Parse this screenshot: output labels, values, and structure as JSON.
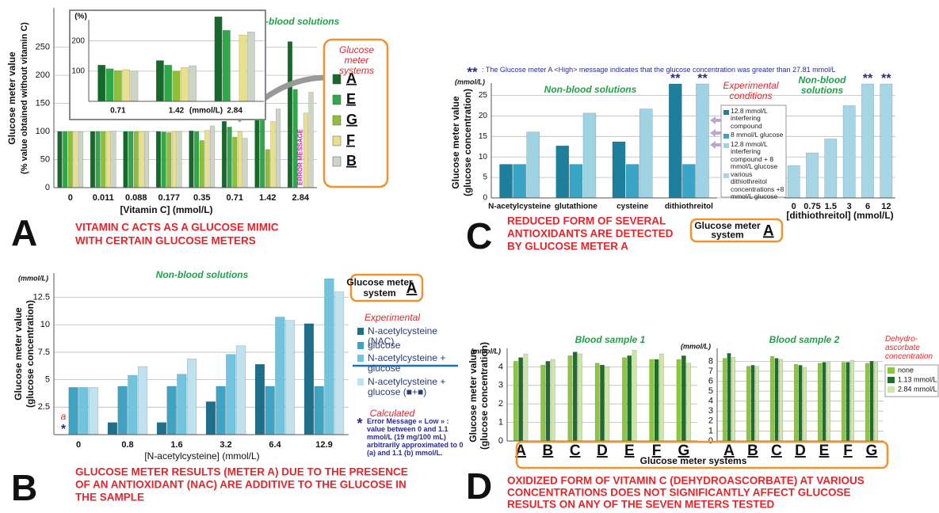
{
  "chart_data": [
    {
      "type": "bar",
      "panel": "A",
      "caption": [
        "VITAMIN C ACTS AS A GLUCOSE MIMIC",
        "WITH CERTAIN GLUCOSE METERS"
      ],
      "ylabel": [
        "Glucose meter value",
        "(% value obtained without vitamin C)"
      ],
      "xlabel": "[Vitamin C] (mmol/L)",
      "annotation": "Non-blood solutions",
      "legend_title": "Glucose meter systems",
      "categories": [
        "0",
        "0.011",
        "0.088",
        "0.177",
        "0.35",
        "0.71",
        "1.42",
        "2.84"
      ],
      "series": [
        {
          "name": "A",
          "color": "#17692b",
          "values": [
            100,
            100,
            100,
            100,
            101,
            118,
            170,
            260
          ]
        },
        {
          "name": "E",
          "color": "#2fa84a",
          "values": [
            100,
            100,
            100,
            99,
            100,
            108,
            130,
            175
          ]
        },
        {
          "name": "G",
          "color": "#8fbf3a",
          "values": [
            100,
            100,
            100,
            98,
            84,
            90,
            68,
            null
          ],
          "markers": [
            null,
            null,
            null,
            null,
            null,
            null,
            null,
            "ERROR MESSAGE"
          ]
        },
        {
          "name": "F",
          "color": "#e8e08c",
          "values": [
            100,
            100,
            100,
            100,
            102,
            100,
            118,
            133
          ]
        },
        {
          "name": "B",
          "color": "#cdd5c6",
          "values": [
            99,
            101,
            100,
            100,
            110,
            88,
            140,
            170
          ]
        }
      ],
      "ylim": [
        0,
        320
      ],
      "yticks": [
        0,
        50,
        100,
        150,
        200,
        250
      ],
      "grid": true
    },
    {
      "type": "bar",
      "ylabel": "(%)",
      "xlabel": "(mmol/L)",
      "categories": [
        "0.71",
        "1.42",
        "2.84"
      ],
      "series": [
        {
          "color": "#17692b",
          "values": [
            120,
            135,
            280
          ]
        },
        {
          "color": "#2fa84a",
          "values": [
            108,
            120,
            235
          ]
        },
        {
          "color": "#8fbf3a",
          "values": [
            102,
            100,
            null
          ]
        },
        {
          "color": "#e8e08c",
          "values": [
            105,
            112,
            220
          ]
        },
        {
          "color": "#cdd5c6",
          "values": [
            100,
            118,
            230
          ]
        }
      ],
      "ylim": [
        0,
        270
      ],
      "yticks": [
        100,
        200
      ],
      "grid": true
    },
    {
      "type": "bar",
      "panel": "B",
      "caption": [
        "GLUCOSE METER RESULTS (METER A) DUE TO THE PRESENCE",
        "OF AN ANTIOXIDANT (NAC) ARE ADDITIVE TO THE GLUCOSE IN",
        "THE SAMPLE"
      ],
      "ylabel": [
        "Glucose meter value",
        "(glucose concentration)"
      ],
      "yunit": "(mmol/L)",
      "xlabel": "[N-acetylcysteine] (mmol/L)",
      "annotation": "Non-blood solutions",
      "system_box": [
        "Glucose meter",
        "system",
        "A"
      ],
      "legend_groups": [
        "Experimental",
        "Calculated"
      ],
      "note_marker": "*",
      "note": "Error Message « Low » : value between 0 and 1.1 mmol/L (19 mg/100 mL) arbitrarily approximated to 0 (a) and 1.1 (b) mmol/L.",
      "categories": [
        "0",
        "0.8",
        "1.6",
        "3.2",
        "6.4",
        "12.9"
      ],
      "series": [
        {
          "name": "N-acetylcysteine (NAC)",
          "color": "#1d6f8a",
          "values": [
            null,
            1.1,
            1.1,
            3.0,
            6.4,
            10.1
          ],
          "markers": [
            "*",
            null,
            null,
            null,
            null,
            null
          ],
          "marker_notes": [
            "a",
            null,
            null,
            null,
            null,
            null
          ]
        },
        {
          "name": "glucose",
          "color": "#3fa4c4",
          "values": [
            4.3,
            4.4,
            4.4,
            4.4,
            4.4,
            4.4
          ]
        },
        {
          "name": "N-acetylcysteine + glucose",
          "color": "#72c4dc",
          "values": [
            4.3,
            5.4,
            5.5,
            7.3,
            10.7,
            14.2
          ]
        },
        {
          "name": "N-acetylcysteine + glucose (■+■)",
          "color": "#bfe2ee",
          "values": [
            4.3,
            6.2,
            6.9,
            8.1,
            10.4,
            13.0
          ]
        }
      ],
      "ylim": [
        0,
        14.7
      ],
      "yticks": [
        2.5,
        5,
        7.5,
        10,
        12.5
      ],
      "grid": true
    },
    {
      "type": "bar",
      "panel": "C",
      "caption": [
        "REDUCED FORM OF SEVERAL",
        "ANTIOXIDANTS ARE DETECTED",
        "BY GLUCOSE METER A"
      ],
      "note_marker": "**",
      "note": ": The Glucose meter A <High> message indicates that the glucose concentration was greater than 27.81 mmol/L",
      "ylabel": [
        "Glucose meter value",
        "(glucose concentration)"
      ],
      "yunit": "(mmol/L)",
      "annotation": "Non-blood solutions",
      "legend_title": "Experimental conditions",
      "system_box": [
        "Glucose meter",
        "system",
        "A"
      ],
      "categories": [
        "N-acetylcysteine",
        "glutathione",
        "cysteine",
        "dithiothreitol"
      ],
      "series": [
        {
          "name": "12.8 mmol/L interfering compound",
          "color": "#1e7f9c",
          "values": [
            8.2,
            12.7,
            13.7,
            27.81
          ],
          "markers": [
            null,
            null,
            null,
            "**"
          ]
        },
        {
          "name": "8 mmol/L glucose",
          "color": "#3aa4c7",
          "values": [
            8.2,
            8.2,
            8.2,
            8.2
          ]
        },
        {
          "name": "12.8 mmol/L interfering compound + 8 mmol/L glucose",
          "color": "#9fd3e3",
          "values": [
            16.1,
            20.7,
            21.7,
            27.81
          ],
          "markers": [
            null,
            null,
            null,
            "**"
          ]
        }
      ],
      "ylim": [
        0,
        28
      ],
      "yticks": [
        0,
        5,
        10,
        15,
        20,
        25
      ],
      "grid": true
    },
    {
      "type": "bar",
      "annotation": "Non-blood solutions",
      "xlabel": "[dithiothreitol] (mmol/L)",
      "categories": [
        "0",
        "0.75",
        "1.5",
        "3",
        "6",
        "12"
      ],
      "series": [
        {
          "name": "various dithiothreitol concentrations +8 mmol/L glucose",
          "color": "#a6d6e5",
          "values": [
            7.9,
            11,
            14.4,
            22.5,
            27.81,
            27.81
          ],
          "markers": [
            null,
            null,
            null,
            null,
            "**",
            "**"
          ]
        }
      ],
      "ylim": [
        0,
        28
      ]
    },
    {
      "type": "bar",
      "panel": "D",
      "caption": [
        "OXIDIZED FORM OF VITAMIN C (DEHYDROASCORBATE) AT VARIOUS",
        "CONCENTRATIONS DOES NOT SIGNIFICANTLY AFFECT GLUCOSE",
        "RESULTS ON ANY OF THE SEVEN METERS TESTED"
      ],
      "ylabel": [
        "Glucose meter value",
        "(glucose concentration)"
      ],
      "yunit": "(mmol/L)",
      "title": "Blood sample 1",
      "xlabel": "Glucose meter systems",
      "legend_title": "Dehydro-ascorbate concentration",
      "categories": [
        "A",
        "B",
        "C",
        "D",
        "E",
        "F",
        "G"
      ],
      "series": [
        {
          "name": "none",
          "color": "#8cc63f",
          "values": [
            4.3,
            4.1,
            4.6,
            4.2,
            4.5,
            4.4,
            4.4
          ]
        },
        {
          "name": "1.13 mmol/L",
          "color": "#1f6e2a",
          "values": [
            4.5,
            4.3,
            4.8,
            4.1,
            4.6,
            4.4,
            4.6
          ]
        },
        {
          "name": "2.84 mmol/L",
          "color": "#cfe6a9",
          "values": [
            4.7,
            4.4,
            4.7,
            4.0,
            4.9,
            4.7,
            4.2
          ]
        }
      ],
      "ylim": [
        0,
        5
      ],
      "yticks": [
        0,
        1,
        2,
        3,
        4
      ],
      "grid": true
    },
    {
      "type": "bar",
      "title": "Blood sample 2",
      "yunit": "(mmol/L)",
      "categories": [
        "A",
        "B",
        "C",
        "D",
        "E",
        "F",
        "G"
      ],
      "series": [
        {
          "color": "#8cc63f",
          "values": [
            8.3,
            7.5,
            8.5,
            7.7,
            7.8,
            7.9,
            7.8
          ]
        },
        {
          "color": "#1f6e2a",
          "values": [
            8.8,
            7.6,
            8.3,
            7.6,
            7.9,
            7.9,
            8.0
          ]
        },
        {
          "color": "#cfe6a9",
          "values": [
            8.4,
            7.5,
            8.2,
            7.4,
            7.9,
            8.1,
            7.9
          ]
        }
      ],
      "ylim": [
        0,
        9.3
      ],
      "yticks": [
        0,
        1,
        2,
        3,
        4,
        5,
        6,
        7,
        8
      ],
      "grid": true
    }
  ]
}
